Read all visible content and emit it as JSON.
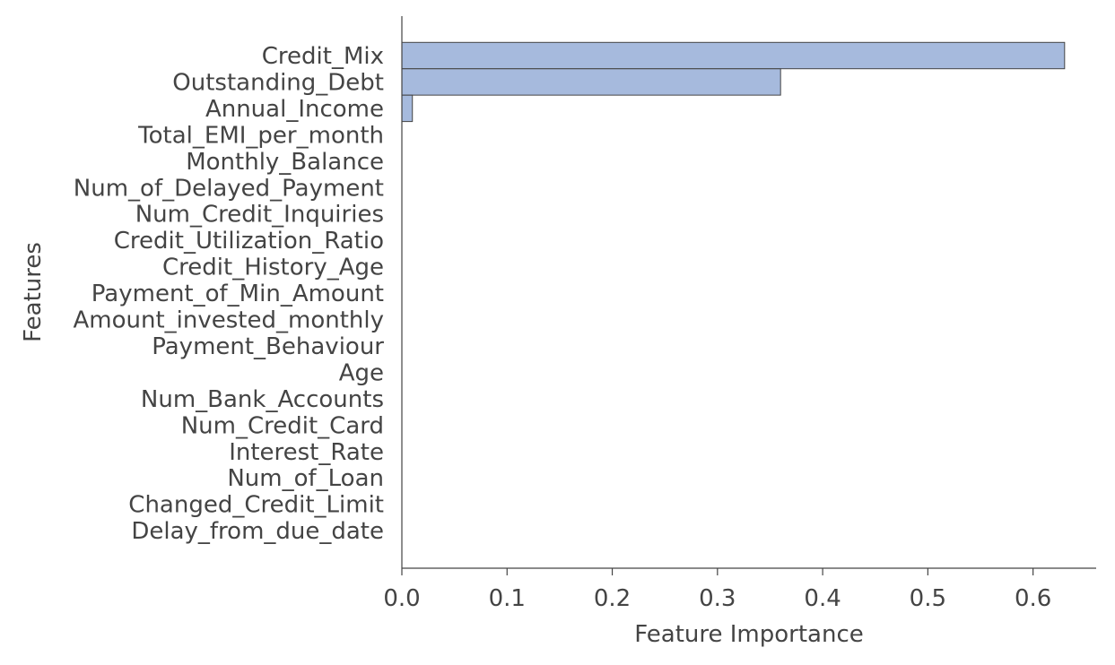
{
  "chart_data": {
    "type": "bar",
    "orientation": "horizontal",
    "title": "",
    "xlabel": "Feature Importance",
    "ylabel": "Features",
    "xlim": [
      0,
      0.66
    ],
    "x_ticks": [
      0.0,
      0.1,
      0.2,
      0.3,
      0.4,
      0.5,
      0.6
    ],
    "x_tick_labels": [
      "0.0",
      "0.1",
      "0.2",
      "0.3",
      "0.4",
      "0.5",
      "0.6"
    ],
    "grid": false,
    "bar_color": "#a6badd",
    "edge_color": "#444444",
    "categories": [
      "Credit_Mix",
      "Outstanding_Debt",
      "Annual_Income",
      "Total_EMI_per_month",
      "Monthly_Balance",
      "Num_of_Delayed_Payment",
      "Num_Credit_Inquiries",
      "Credit_Utilization_Ratio",
      "Credit_History_Age",
      "Payment_of_Min_Amount",
      "Amount_invested_monthly",
      "Payment_Behaviour",
      "Age",
      "Num_Bank_Accounts",
      "Num_Credit_Card",
      "Interest_Rate",
      "Num_of_Loan",
      "Changed_Credit_Limit",
      "Delay_from_due_date"
    ],
    "values": [
      0.63,
      0.36,
      0.01,
      0,
      0,
      0,
      0,
      0,
      0,
      0,
      0,
      0,
      0,
      0,
      0,
      0,
      0,
      0,
      0
    ]
  }
}
